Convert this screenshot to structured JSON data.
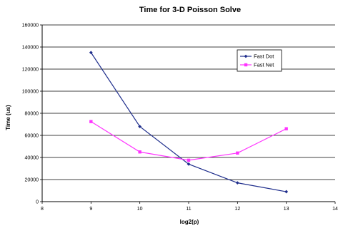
{
  "chart_data": {
    "type": "line",
    "title": "Time for 3-D Poisson Solve",
    "xlabel": "log2(p)",
    "ylabel": "Time (us)",
    "xlim": [
      8,
      14
    ],
    "ylim": [
      0,
      160000
    ],
    "x_ticks": [
      "8",
      "9",
      "10",
      "11",
      "12",
      "13",
      "14"
    ],
    "y_ticks": [
      "0",
      "20000",
      "40000",
      "60000",
      "80000",
      "100000",
      "120000",
      "140000",
      "160000"
    ],
    "grid": "horizontal",
    "legend_position": "top-right",
    "series": [
      {
        "name": "Fast Dot",
        "color": "#1f2e8c",
        "marker": "diamond",
        "x": [
          9,
          10,
          11,
          12,
          13
        ],
        "values": [
          135000,
          68000,
          34000,
          17000,
          9000
        ]
      },
      {
        "name": "Fast Net",
        "color": "#ff33ff",
        "marker": "square",
        "x": [
          9,
          10,
          11,
          12,
          13
        ],
        "values": [
          72500,
          45000,
          37500,
          44000,
          66000
        ]
      }
    ]
  }
}
